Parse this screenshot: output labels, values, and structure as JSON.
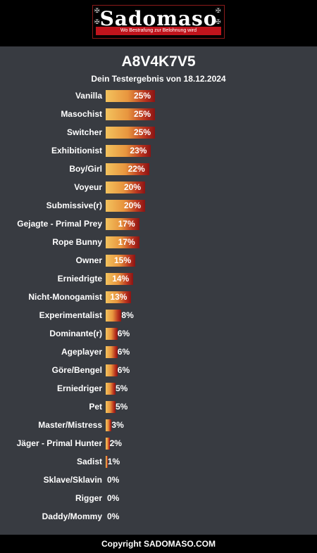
{
  "header": {
    "logo_text": "Sadomaso",
    "logo_tagline": "Wo Bestrafung zur Belohnung wird"
  },
  "result": {
    "code": "A8V4K7V5",
    "subtitle": "Dein Testergebnis von 18.12.2024"
  },
  "chart_data": {
    "type": "bar",
    "orientation": "horizontal",
    "categories": [
      "Vanilla",
      "Masochist",
      "Switcher",
      "Exhibitionist",
      "Boy/Girl",
      "Voyeur",
      "Submissive(r)",
      "Gejagte - Primal Prey",
      "Rope Bunny",
      "Owner",
      "Erniedrigte",
      "Nicht-Monogamist",
      "Experimentalist",
      "Dominante(r)",
      "Ageplayer",
      "Göre/Bengel",
      "Erniedriger",
      "Pet",
      "Master/Mistress",
      "Jäger - Primal Hunter",
      "Sadist",
      "Sklave/Sklavin",
      "Rigger",
      "Daddy/Mommy"
    ],
    "values": [
      25,
      25,
      25,
      23,
      22,
      20,
      20,
      17,
      17,
      15,
      14,
      13,
      8,
      6,
      6,
      6,
      5,
      5,
      3,
      2,
      1,
      0,
      0,
      0
    ],
    "value_labels": [
      "25%",
      "25%",
      "25%",
      "23%",
      "22%",
      "20%",
      "20%",
      "17%",
      "17%",
      "15%",
      "14%",
      "13%",
      "8%",
      "6%",
      "6%",
      "6%",
      "5%",
      "5%",
      "3%",
      "2%",
      "1%",
      "0%",
      "0%",
      "0%"
    ],
    "bar_colors": [
      "#f3c35e",
      "#e8953e",
      "#b8321e",
      "#8a1414"
    ],
    "xlim": [
      0,
      100
    ]
  },
  "footer": {
    "copyright": "Copyright SADOMASO.COM"
  }
}
